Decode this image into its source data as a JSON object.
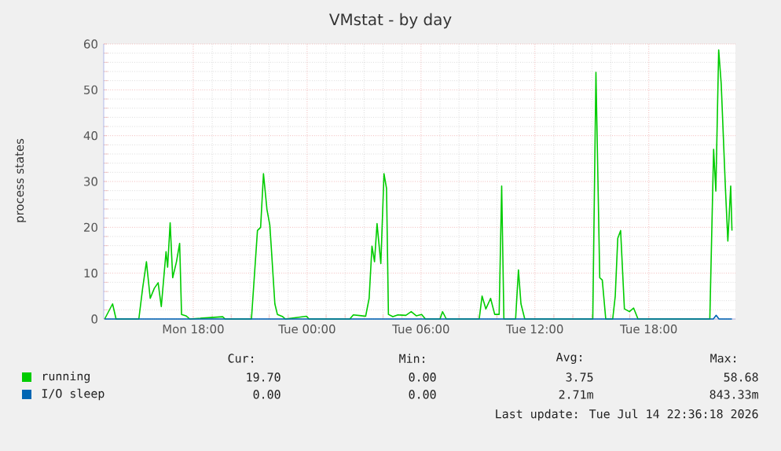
{
  "chart_data": {
    "type": "line",
    "title": "VMstat - by day",
    "ylabel": "process states",
    "xlim": [
      "2026-07-13T13:17",
      "2026-07-14T22:34"
    ],
    "ylim": [
      0,
      60
    ],
    "xticks": [
      {
        "value": "2026-07-13T18:00",
        "label": "Mon 18:00"
      },
      {
        "value": "2026-07-14T00:00",
        "label": "Tue 00:00"
      },
      {
        "value": "2026-07-14T06:00",
        "label": "Tue 06:00"
      },
      {
        "value": "2026-07-14T12:00",
        "label": "Tue 12:00"
      },
      {
        "value": "2026-07-14T18:00",
        "label": "Tue 18:00"
      }
    ],
    "yticks": [
      0,
      10,
      20,
      30,
      40,
      50,
      60
    ],
    "grid": true,
    "legend": "bottom",
    "series": [
      {
        "name": "running",
        "color": "#00cc00",
        "x": [
          "2026-07-13T13:20",
          "2026-07-13T13:45",
          "2026-07-13T13:56",
          "2026-07-13T15:08",
          "2026-07-13T15:20",
          "2026-07-13T15:32",
          "2026-07-13T15:44",
          "2026-07-13T15:57",
          "2026-07-13T16:09",
          "2026-07-13T16:19",
          "2026-07-13T16:34",
          "2026-07-13T16:39",
          "2026-07-13T16:47",
          "2026-07-13T16:55",
          "2026-07-13T17:07",
          "2026-07-13T17:17",
          "2026-07-13T17:23",
          "2026-07-13T17:37",
          "2026-07-13T17:49",
          "2026-07-13T19:33",
          "2026-07-13T19:41",
          "2026-07-13T21:04",
          "2026-07-13T21:23",
          "2026-07-13T21:33",
          "2026-07-13T21:42",
          "2026-07-13T21:53",
          "2026-07-13T22:02",
          "2026-07-13T22:07",
          "2026-07-13T22:18",
          "2026-07-13T22:26",
          "2026-07-13T22:43",
          "2026-07-13T22:51",
          "2026-07-13T23:58",
          "2026-07-14T00:06",
          "2026-07-14T02:15",
          "2026-07-14T02:26",
          "2026-07-14T02:52",
          "2026-07-14T03:05",
          "2026-07-14T03:16",
          "2026-07-14T03:25",
          "2026-07-14T03:33",
          "2026-07-14T03:41",
          "2026-07-14T03:53",
          "2026-07-14T04:03",
          "2026-07-14T04:11",
          "2026-07-14T04:17",
          "2026-07-14T04:31",
          "2026-07-14T04:47",
          "2026-07-14T05:12",
          "2026-07-14T05:29",
          "2026-07-14T05:45",
          "2026-07-14T06:02",
          "2026-07-14T06:14",
          "2026-07-14T07:00",
          "2026-07-14T07:08",
          "2026-07-14T07:20",
          "2026-07-14T09:04",
          "2026-07-14T09:13",
          "2026-07-14T09:25",
          "2026-07-14T09:40",
          "2026-07-14T09:53",
          "2026-07-14T10:07",
          "2026-07-14T10:15",
          "2026-07-14T10:22",
          "2026-07-14T10:59",
          "2026-07-14T11:08",
          "2026-07-14T11:16",
          "2026-07-14T11:28",
          "2026-07-14T15:03",
          "2026-07-14T15:13",
          "2026-07-14T15:25",
          "2026-07-14T15:33",
          "2026-07-14T15:44",
          "2026-07-14T16:06",
          "2026-07-14T16:14",
          "2026-07-14T16:22",
          "2026-07-14T16:31",
          "2026-07-14T16:43",
          "2026-07-14T16:59",
          "2026-07-14T17:12",
          "2026-07-14T17:26",
          "2026-07-14T21:13",
          "2026-07-14T21:25",
          "2026-07-14T21:32",
          "2026-07-14T21:41",
          "2026-07-14T21:49",
          "2026-07-14T22:02",
          "2026-07-14T22:10",
          "2026-07-14T22:19",
          "2026-07-14T22:23"
        ],
        "values": [
          0,
          3.3,
          0,
          0,
          6.7,
          12.5,
          4.5,
          6.7,
          7.9,
          2.7,
          14.7,
          11.3,
          21,
          9,
          12.5,
          16.5,
          1,
          0.7,
          0,
          0.5,
          0,
          0,
          19.3,
          20,
          31.7,
          23.9,
          20.5,
          15.3,
          3.3,
          1,
          0.5,
          0,
          0.6,
          0,
          0,
          0.9,
          0.7,
          0.6,
          4.5,
          15.9,
          12.5,
          20.8,
          12.1,
          31.7,
          28.5,
          1,
          0.5,
          0.9,
          0.8,
          1.6,
          0.7,
          1,
          0,
          0,
          1.6,
          0,
          0,
          5,
          2.2,
          4.5,
          1,
          1,
          29,
          0,
          0,
          10.7,
          3.3,
          0,
          0,
          53.8,
          9,
          8.5,
          0,
          0,
          5,
          17.6,
          19.3,
          2.2,
          1.6,
          2.4,
          0,
          0,
          37,
          27.9,
          58.7,
          51.3,
          29,
          17,
          29,
          19.3
        ]
      },
      {
        "name": "I/O sleep",
        "color": "#0066b3",
        "x": [
          "2026-07-13T13:20",
          "2026-07-14T21:24",
          "2026-07-14T21:33",
          "2026-07-14T21:42",
          "2026-07-14T22:23"
        ],
        "values": [
          0,
          0,
          0.8,
          0,
          0
        ]
      }
    ],
    "annotations": [
      "Cur:",
      "Min:",
      "Avg:",
      "Max:",
      "19.70",
      "0.00",
      "3.75",
      "58.68",
      "0.00",
      "0.00",
      "2.71m",
      "843.33m",
      "Last update: Tue Jul 14 22:36:18 2026"
    ]
  }
}
